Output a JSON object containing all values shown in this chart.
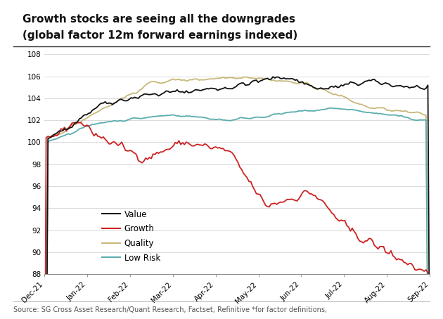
{
  "title_line1": "Growth stocks are seeing all the downgrades",
  "title_line2": "(global factor 12m forward earnings indexed)",
  "source": "Source: SG Cross Asset Research/Quant Research, Factset, Refinitive *for factor definitions,",
  "ylim": [
    88,
    108
  ],
  "yticks": [
    88,
    90,
    92,
    94,
    96,
    98,
    100,
    102,
    104,
    106,
    108
  ],
  "xtick_labels": [
    "Dec-21",
    "Jan-22",
    "Feb-22",
    "Mar-22",
    "Apr-22",
    "May-22",
    "Jun-22",
    "Jul-22",
    "Aug-22",
    "Sep-22"
  ],
  "colors": {
    "Value": "#111111",
    "Growth": "#cc2222",
    "Quality": "#c8b87a",
    "Low Risk": "#5aadad"
  },
  "background": "#ffffff"
}
